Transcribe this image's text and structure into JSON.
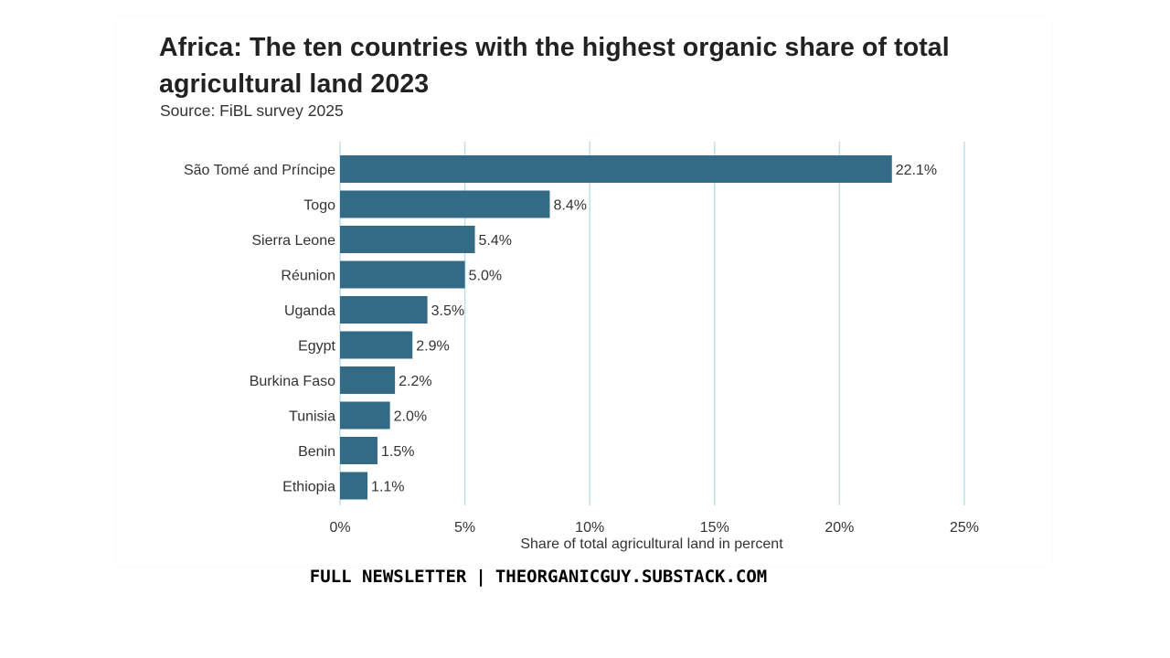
{
  "chart_data": {
    "type": "bar",
    "orientation": "horizontal",
    "title": "Africa: The ten countries with the highest organic share of total agricultural land 2023",
    "subtitle": "Source: FiBL survey 2025",
    "xlabel": "Share of total agricultural land in percent",
    "ylabel": "",
    "xlim": [
      0,
      25
    ],
    "xticks": [
      "0%",
      "5%",
      "10%",
      "15%",
      "20%",
      "25%"
    ],
    "xtick_values": [
      0,
      5,
      10,
      15,
      20,
      25
    ],
    "categories": [
      "São Tomé and Príncipe",
      "Togo",
      "Sierra Leone",
      "Réunion",
      "Uganda",
      "Egypt",
      "Burkina Faso",
      "Tunisia",
      "Benin",
      "Ethiopia"
    ],
    "values": [
      22.1,
      8.4,
      5.4,
      5.0,
      3.5,
      2.9,
      2.2,
      2.0,
      1.5,
      1.1
    ],
    "data_labels": [
      "22.1%",
      "8.4%",
      "5.4%",
      "5.0%",
      "3.5%",
      "2.9%",
      "2.2%",
      "2.0%",
      "1.5%",
      "1.1%"
    ],
    "grid": true,
    "legend": "none",
    "bar_color": "#336b87",
    "grid_color": "#bfe0ea"
  },
  "footer": {
    "left": "FULL NEWSLETTER",
    "separator": "|",
    "right": "THEORGANICGUY.SUBSTACK.COM"
  }
}
